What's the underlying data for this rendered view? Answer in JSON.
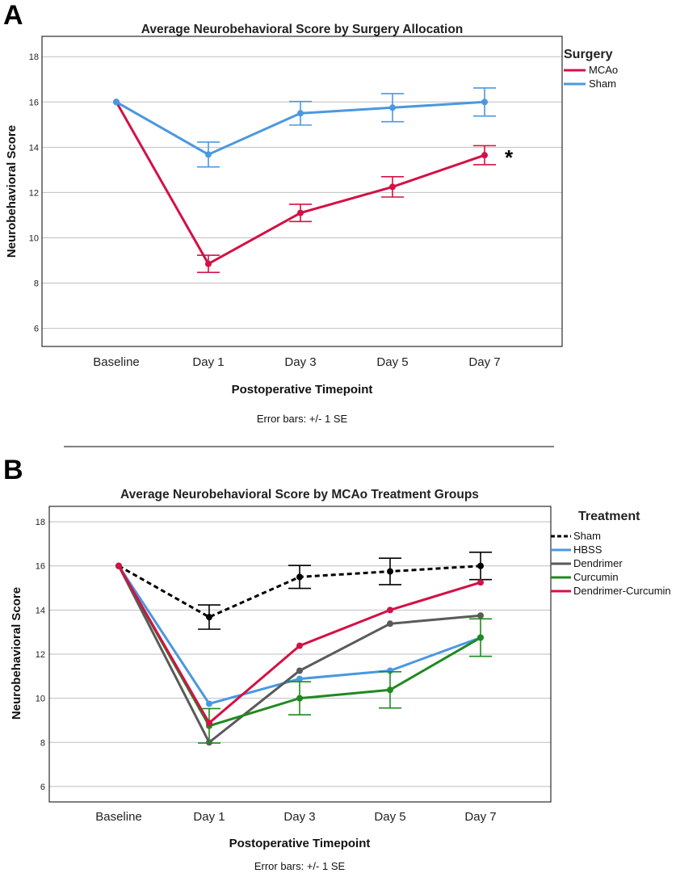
{
  "figure": {
    "divider": true
  },
  "colors": {
    "mcao": "#d31145",
    "sham_blue": "#4a98e0",
    "sham_black": "#000000",
    "hbss": "#4a98e0",
    "dendrimer": "#5a5a5a",
    "curcumin": "#1f8a1f",
    "dc": "#d31145",
    "grid": "#bfbfbf",
    "axis": "#000000"
  },
  "chart_data": [
    {
      "panel_label": "A",
      "type": "line",
      "title": "Average Neurobehavioral Score by Surgery Allocation",
      "xlabel": "Postoperative Timepoint",
      "ylabel": "Neurobehavioral Score",
      "categories": [
        "Baseline",
        "Day 1",
        "Day 3",
        "Day 5",
        "Day 7"
      ],
      "ylim": [
        5.2,
        18.9
      ],
      "yticks": [
        6,
        8,
        10,
        12,
        14,
        16,
        18
      ],
      "grid": true,
      "legend_title": "Surgery",
      "legend_position": "top-right",
      "note": "Error bars: +/- 1 SE",
      "annotation": "*",
      "series": [
        {
          "name": "MCAo",
          "color": "#d31145",
          "dash": false,
          "values": [
            16.0,
            8.85,
            11.1,
            12.25,
            13.65
          ],
          "err": [
            0,
            0.38,
            0.38,
            0.45,
            0.42
          ]
        },
        {
          "name": "Sham",
          "color": "#4a98e0",
          "dash": false,
          "values": [
            16.0,
            13.68,
            15.5,
            15.75,
            16.0
          ],
          "err": [
            0,
            0.55,
            0.52,
            0.62,
            0.62
          ]
        }
      ]
    },
    {
      "panel_label": "B",
      "type": "line",
      "title": "Average Neurobehavioral Score by MCAo Treatment Groups",
      "xlabel": "Postoperative Timepoint",
      "ylabel": "Neurobehavioral Score",
      "categories": [
        "Baseline",
        "Day 1",
        "Day 3",
        "Day 5",
        "Day 7"
      ],
      "ylim": [
        5.3,
        18.7
      ],
      "yticks": [
        6,
        8,
        10,
        12,
        14,
        16,
        18
      ],
      "grid": true,
      "legend_title": "Treatment",
      "legend_position": "top-right",
      "note": "Error bars: +/- 1 SE",
      "series": [
        {
          "name": "Sham",
          "color": "#000000",
          "dash": true,
          "values": [
            16.0,
            13.68,
            15.5,
            15.75,
            16.0
          ],
          "err": [
            0,
            0.55,
            0.52,
            0.6,
            0.62
          ]
        },
        {
          "name": "HBSS",
          "color": "#4a98e0",
          "dash": false,
          "values": [
            16.0,
            9.75,
            10.88,
            11.25,
            12.75
          ],
          "err": [
            0,
            0,
            0,
            0,
            0
          ]
        },
        {
          "name": "Dendrimer",
          "color": "#5a5a5a",
          "dash": false,
          "values": [
            16.0,
            8.0,
            11.25,
            13.38,
            13.75
          ],
          "err": [
            0,
            0,
            0,
            0,
            0
          ]
        },
        {
          "name": "Curcumin",
          "color": "#1f8a1f",
          "dash": false,
          "values": [
            16.0,
            8.75,
            10.0,
            10.38,
            12.75
          ],
          "err": [
            0,
            0.78,
            0.75,
            0.82,
            0.85
          ]
        },
        {
          "name": "Dendrimer-Curcumin",
          "color": "#d31145",
          "dash": false,
          "values": [
            16.0,
            8.88,
            12.38,
            14.0,
            15.25
          ],
          "err": [
            0,
            0,
            0,
            0,
            0
          ]
        }
      ]
    }
  ]
}
